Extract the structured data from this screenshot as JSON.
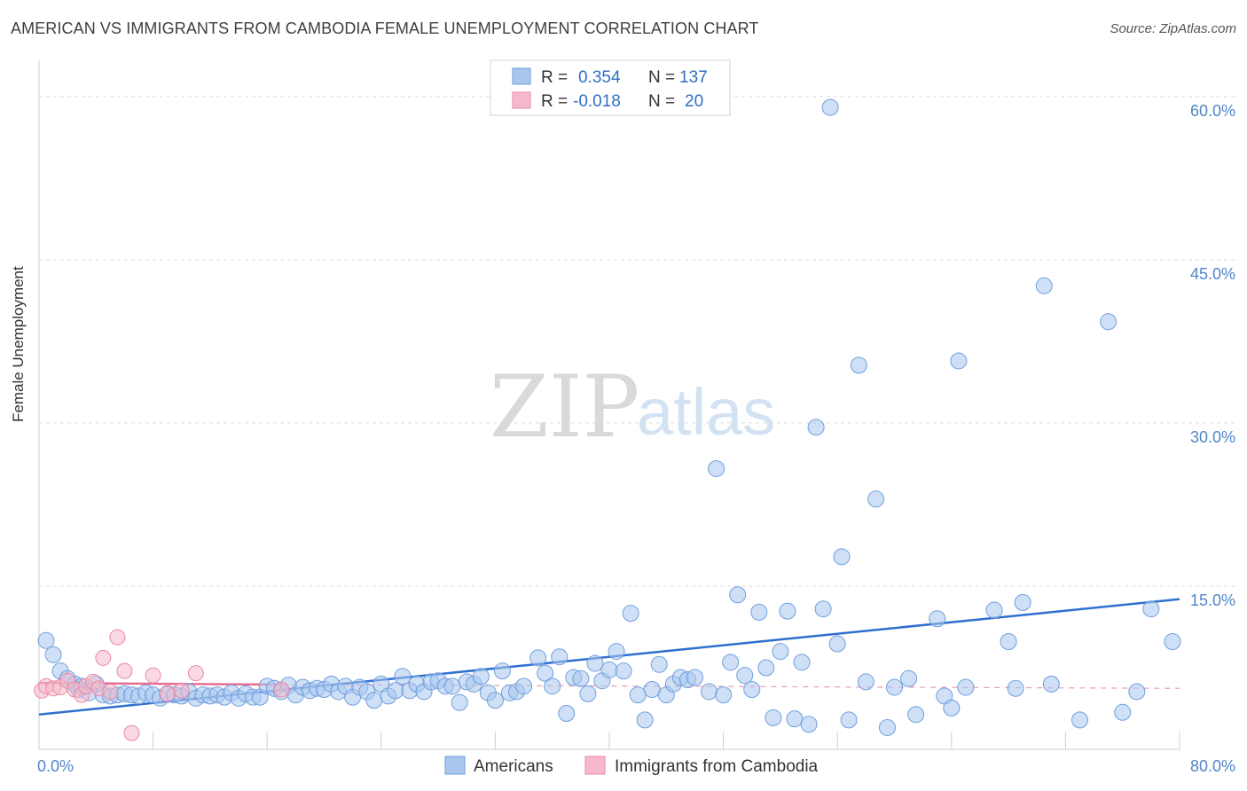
{
  "title": "AMERICAN VS IMMIGRANTS FROM CAMBODIA FEMALE UNEMPLOYMENT CORRELATION CHART",
  "source": "Source: ZipAtlas.com",
  "watermark": {
    "zip": "ZIP",
    "atlas": "atlas"
  },
  "legend_top": {
    "r_label": "R =",
    "n_label": "N =",
    "rows": [
      {
        "series": "Americans",
        "r": "0.354",
        "n": "137",
        "color": "#a8c6ee"
      },
      {
        "series": "Immigrants from Cambodia",
        "r": "-0.018",
        "n": "20",
        "color": "#f6b9cb"
      }
    ]
  },
  "chart_data": {
    "type": "scatter",
    "title": "AMERICAN VS IMMIGRANTS FROM CAMBODIA FEMALE UNEMPLOYMENT CORRELATION CHART",
    "xlabel": "",
    "ylabel": "Female Unemployment",
    "xlim": [
      0,
      80
    ],
    "ylim": [
      0,
      63
    ],
    "x_tick_labels": [
      "0.0%",
      "80.0%"
    ],
    "y_ticks": [
      15,
      30,
      45,
      60
    ],
    "y_tick_labels": [
      "15.0%",
      "30.0%",
      "45.0%",
      "60.0%"
    ],
    "grid": true,
    "legend_position": "bottom",
    "series": [
      {
        "name": "Americans",
        "color": "#a8c6ee",
        "stroke": "#6f9fde",
        "trend": {
          "x": [
            0,
            80
          ],
          "y": [
            3.2,
            13.8
          ],
          "style": "solid",
          "color": "#2f6fcf"
        },
        "points": [
          [
            0.5,
            10
          ],
          [
            1,
            8.7
          ],
          [
            1.5,
            7.2
          ],
          [
            2,
            6.5
          ],
          [
            2.5,
            6
          ],
          [
            2.8,
            5.5
          ],
          [
            3,
            5.8
          ],
          [
            3.5,
            5.2
          ],
          [
            4,
            6
          ],
          [
            4.5,
            5
          ],
          [
            5,
            4.9
          ],
          [
            5.5,
            5
          ],
          [
            6,
            5.1
          ],
          [
            6.5,
            5
          ],
          [
            7,
            4.9
          ],
          [
            7.5,
            5.2
          ],
          [
            8,
            5
          ],
          [
            8.5,
            4.7
          ],
          [
            9,
            5.1
          ],
          [
            9.5,
            5
          ],
          [
            10,
            4.9
          ],
          [
            10.5,
            5.3
          ],
          [
            11,
            4.7
          ],
          [
            11.5,
            5
          ],
          [
            12,
            4.9
          ],
          [
            12.5,
            5
          ],
          [
            13,
            4.8
          ],
          [
            13.5,
            5.2
          ],
          [
            14,
            4.7
          ],
          [
            14.5,
            5.1
          ],
          [
            15,
            4.8
          ],
          [
            15.5,
            4.8
          ],
          [
            16,
            5.8
          ],
          [
            16.5,
            5.6
          ],
          [
            17,
            5.3
          ],
          [
            17.5,
            5.9
          ],
          [
            18,
            5
          ],
          [
            18.5,
            5.7
          ],
          [
            19,
            5.4
          ],
          [
            19.5,
            5.6
          ],
          [
            20,
            5.5
          ],
          [
            20.5,
            6
          ],
          [
            21,
            5.3
          ],
          [
            21.5,
            5.8
          ],
          [
            22,
            4.8
          ],
          [
            22.5,
            5.7
          ],
          [
            23,
            5.3
          ],
          [
            23.5,
            4.5
          ],
          [
            24,
            6
          ],
          [
            24.5,
            4.9
          ],
          [
            25,
            5.4
          ],
          [
            25.5,
            6.7
          ],
          [
            26,
            5.4
          ],
          [
            26.5,
            6
          ],
          [
            27,
            5.3
          ],
          [
            27.5,
            6.2
          ],
          [
            28,
            6.3
          ],
          [
            28.5,
            5.8
          ],
          [
            29,
            5.8
          ],
          [
            29.5,
            4.3
          ],
          [
            30,
            6.2
          ],
          [
            30.5,
            6
          ],
          [
            31,
            6.7
          ],
          [
            31.5,
            5.2
          ],
          [
            32,
            4.5
          ],
          [
            32.5,
            7.2
          ],
          [
            33,
            5.2
          ],
          [
            33.5,
            5.3
          ],
          [
            34,
            5.8
          ],
          [
            35,
            8.4
          ],
          [
            35.5,
            7
          ],
          [
            36,
            5.8
          ],
          [
            36.5,
            8.5
          ],
          [
            37,
            3.3
          ],
          [
            37.5,
            6.6
          ],
          [
            38,
            6.5
          ],
          [
            38.5,
            5.1
          ],
          [
            39,
            7.9
          ],
          [
            39.5,
            6.3
          ],
          [
            40,
            7.3
          ],
          [
            40.5,
            9
          ],
          [
            41,
            7.2
          ],
          [
            41.5,
            12.5
          ],
          [
            42,
            5
          ],
          [
            42.5,
            2.7
          ],
          [
            43,
            5.5
          ],
          [
            43.5,
            7.8
          ],
          [
            44,
            5
          ],
          [
            44.5,
            6
          ],
          [
            45,
            6.6
          ],
          [
            45.5,
            6.4
          ],
          [
            46,
            6.6
          ],
          [
            47,
            5.3
          ],
          [
            47.5,
            25.8
          ],
          [
            48,
            5
          ],
          [
            48.5,
            8
          ],
          [
            49,
            14.2
          ],
          [
            49.5,
            6.8
          ],
          [
            50,
            5.5
          ],
          [
            50.5,
            12.6
          ],
          [
            51,
            7.5
          ],
          [
            51.5,
            2.9
          ],
          [
            52,
            9
          ],
          [
            52.5,
            12.7
          ],
          [
            53,
            2.8
          ],
          [
            53.5,
            8
          ],
          [
            54,
            2.3
          ],
          [
            54.5,
            29.6
          ],
          [
            55,
            12.9
          ],
          [
            55.5,
            59
          ],
          [
            56,
            9.7
          ],
          [
            56.3,
            17.7
          ],
          [
            56.8,
            2.7
          ],
          [
            57.5,
            35.3
          ],
          [
            58,
            6.2
          ],
          [
            58.7,
            23
          ],
          [
            59.5,
            2
          ],
          [
            60,
            5.7
          ],
          [
            61,
            6.5
          ],
          [
            61.5,
            3.2
          ],
          [
            63,
            12
          ],
          [
            63.5,
            4.9
          ],
          [
            64,
            3.8
          ],
          [
            64.5,
            35.7
          ],
          [
            65,
            5.7
          ],
          [
            67,
            12.8
          ],
          [
            68,
            9.9
          ],
          [
            68.5,
            5.6
          ],
          [
            69,
            13.5
          ],
          [
            70.5,
            42.6
          ],
          [
            71,
            6
          ],
          [
            73,
            2.7
          ],
          [
            75,
            39.3
          ],
          [
            76,
            3.4
          ],
          [
            77,
            5.3
          ],
          [
            78,
            12.9
          ],
          [
            79.5,
            9.9
          ]
        ]
      },
      {
        "name": "Immigrants from Cambodia",
        "color": "#f6b9cb",
        "stroke": "#e98aa7",
        "trend": {
          "x": [
            0,
            17
          ],
          "y": [
            6.1,
            5.95
          ],
          "style": "solid",
          "color": "#e36e91",
          "extension": {
            "x": [
              17,
              80
            ],
            "y": [
              5.95,
              5.6
            ],
            "style": "dashed"
          }
        },
        "points": [
          [
            0.2,
            5.4
          ],
          [
            0.5,
            5.8
          ],
          [
            1,
            5.6
          ],
          [
            1.5,
            5.7
          ],
          [
            2,
            6.3
          ],
          [
            2.5,
            5.5
          ],
          [
            3,
            5
          ],
          [
            3.3,
            5.8
          ],
          [
            3.8,
            6.2
          ],
          [
            4.2,
            5.6
          ],
          [
            4.5,
            8.4
          ],
          [
            5,
            5.3
          ],
          [
            5.5,
            10.3
          ],
          [
            6,
            7.2
          ],
          [
            6.5,
            1.5
          ],
          [
            8,
            6.8
          ],
          [
            9,
            5.1
          ],
          [
            10,
            5.4
          ],
          [
            11,
            7
          ],
          [
            17,
            5.5
          ]
        ]
      }
    ]
  },
  "bottom_legend": [
    {
      "label": "Americans",
      "color": "#a8c6ee"
    },
    {
      "label": "Immigrants from Cambodia",
      "color": "#f6b9cb"
    }
  ]
}
